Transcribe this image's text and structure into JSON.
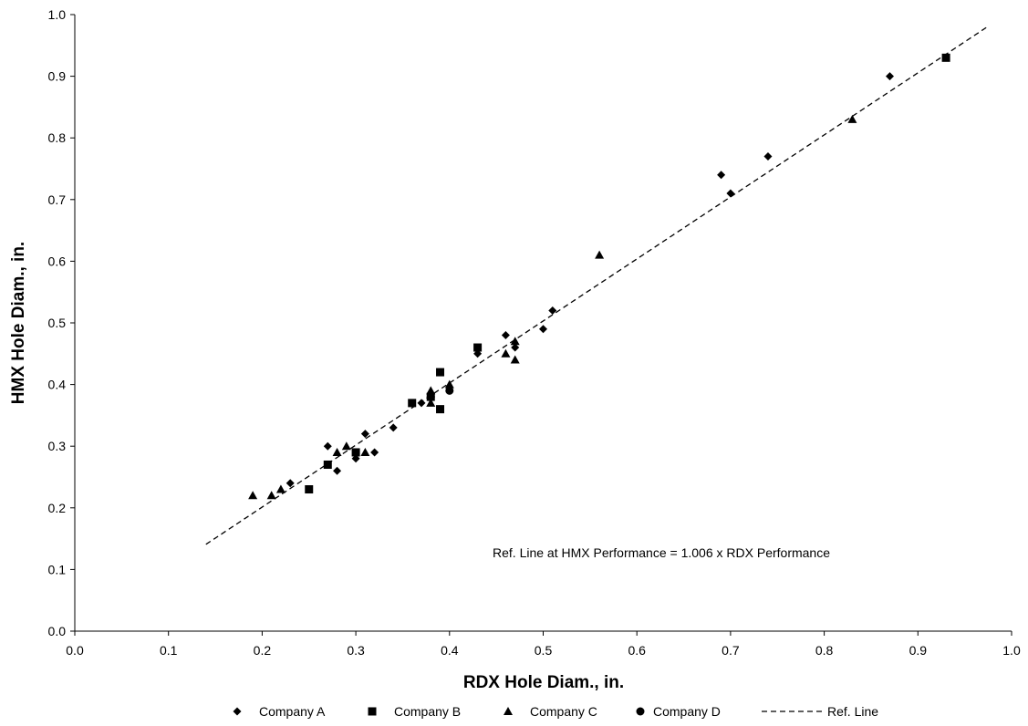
{
  "chart_data": {
    "type": "scatter",
    "title": "",
    "xlabel": "RDX Hole Diam., in.",
    "ylabel": "HMX Hole Diam., in.",
    "xlim": [
      0.0,
      1.0
    ],
    "ylim": [
      0.0,
      1.0
    ],
    "x_ticks": [
      "0.0",
      "0.1",
      "0.2",
      "0.3",
      "0.4",
      "0.5",
      "0.6",
      "0.7",
      "0.8",
      "0.9",
      "1.0"
    ],
    "y_ticks": [
      "0.0",
      "0.1",
      "0.2",
      "0.3",
      "0.4",
      "0.5",
      "0.6",
      "0.7",
      "0.8",
      "0.9",
      "1.0"
    ],
    "grid": false,
    "legend_position": "bottom",
    "annotation": "Ref. Line at HMX Performance = 1.006 x RDX Performance",
    "series": [
      {
        "name": "Company A",
        "marker": "diamond",
        "color": "#000000",
        "points": [
          [
            0.23,
            0.24
          ],
          [
            0.27,
            0.3
          ],
          [
            0.28,
            0.26
          ],
          [
            0.3,
            0.28
          ],
          [
            0.31,
            0.32
          ],
          [
            0.32,
            0.29
          ],
          [
            0.34,
            0.33
          ],
          [
            0.37,
            0.37
          ],
          [
            0.43,
            0.45
          ],
          [
            0.46,
            0.48
          ],
          [
            0.47,
            0.46
          ],
          [
            0.5,
            0.49
          ],
          [
            0.51,
            0.52
          ],
          [
            0.69,
            0.74
          ],
          [
            0.7,
            0.71
          ],
          [
            0.74,
            0.77
          ],
          [
            0.87,
            0.9
          ]
        ]
      },
      {
        "name": "Company B",
        "marker": "square",
        "color": "#000000",
        "points": [
          [
            0.25,
            0.23
          ],
          [
            0.27,
            0.27
          ],
          [
            0.3,
            0.29
          ],
          [
            0.36,
            0.37
          ],
          [
            0.38,
            0.38
          ],
          [
            0.39,
            0.42
          ],
          [
            0.39,
            0.36
          ],
          [
            0.43,
            0.46
          ],
          [
            0.93,
            0.93
          ]
        ]
      },
      {
        "name": "Company C",
        "marker": "triangle",
        "color": "#000000",
        "points": [
          [
            0.19,
            0.22
          ],
          [
            0.21,
            0.22
          ],
          [
            0.22,
            0.23
          ],
          [
            0.28,
            0.29
          ],
          [
            0.29,
            0.3
          ],
          [
            0.31,
            0.29
          ],
          [
            0.38,
            0.37
          ],
          [
            0.38,
            0.39
          ],
          [
            0.4,
            0.4
          ],
          [
            0.46,
            0.45
          ],
          [
            0.47,
            0.47
          ],
          [
            0.47,
            0.44
          ],
          [
            0.56,
            0.61
          ],
          [
            0.83,
            0.83
          ]
        ]
      },
      {
        "name": "Company D",
        "marker": "circle",
        "color": "#000000",
        "points": [
          [
            0.38,
            0.38
          ],
          [
            0.4,
            0.39
          ]
        ]
      },
      {
        "name": "Ref. Line",
        "marker": "dashed-line",
        "color": "#000000",
        "points": [
          [
            0.14,
            0.1408
          ],
          [
            0.975,
            0.981
          ]
        ]
      }
    ]
  }
}
